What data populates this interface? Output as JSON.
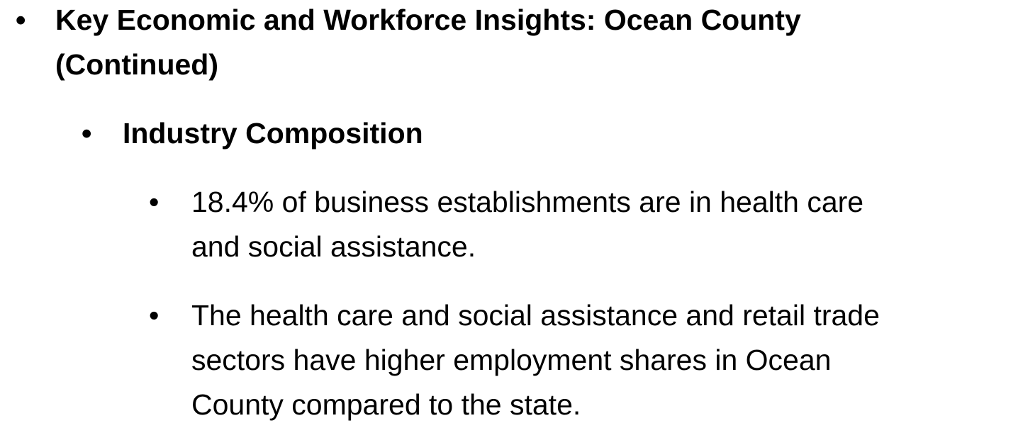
{
  "slide": {
    "heading": {
      "lines": [
        "Key Economic and Workforce Insights: Ocean County",
        "(Continued)"
      ]
    },
    "subheading": {
      "lines": [
        "Industry Composition"
      ]
    },
    "points": [
      {
        "lines": [
          "18.4% of business establishments are in health care",
          "and social assistance."
        ]
      },
      {
        "lines": [
          "The health care and social assistance and retail trade",
          "sectors have higher employment shares in Ocean",
          "County compared to the state."
        ]
      }
    ]
  }
}
